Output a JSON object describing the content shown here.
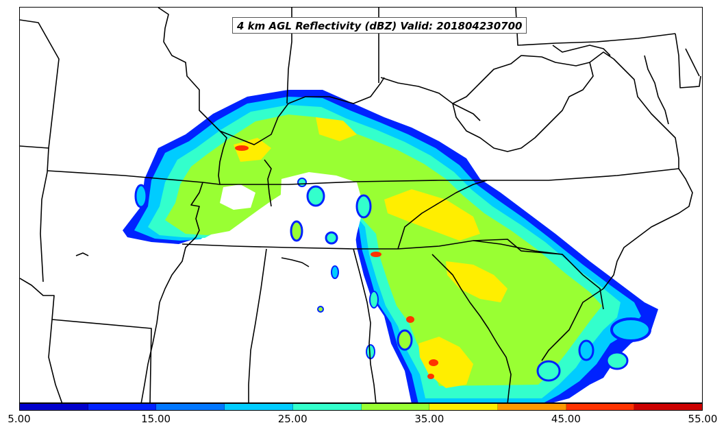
{
  "title": "4 km AGL Reflectivity (dBZ) Valid: 201804230700",
  "colorbar": {
    "labels": [
      "5.00",
      "15.00",
      "25.00",
      "35.00",
      "45.00",
      "55.00"
    ],
    "colors": [
      "#0000cc",
      "#0022ff",
      "#0077ff",
      "#00ccff",
      "#33ffcc",
      "#99ff33",
      "#ffee00",
      "#ff9900",
      "#ff3300",
      "#cc0000"
    ]
  },
  "reflectivity_colors": {
    "low": "#0022ff",
    "mid_low": "#00ccff",
    "mid": "#33ffcc",
    "mid_high": "#99ff33",
    "high": "#ffee00",
    "very_high": "#ff3300"
  }
}
